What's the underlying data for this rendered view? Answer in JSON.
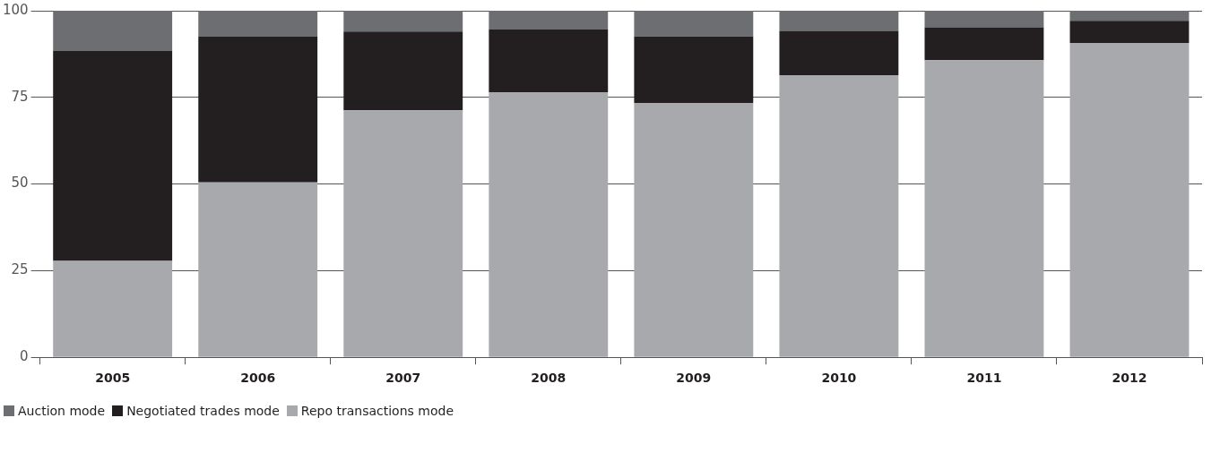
{
  "chart_data": {
    "type": "bar",
    "stacked": true,
    "categories": [
      "2005",
      "2006",
      "2007",
      "2008",
      "2009",
      "2010",
      "2011",
      "2012"
    ],
    "series": [
      {
        "name": "Repo transactions mode",
        "color": "#a7a9ac",
        "values": [
          27.8,
          50.5,
          71.3,
          76.5,
          73.4,
          81.4,
          85.7,
          90.7
        ]
      },
      {
        "name": "Negotiated trades mode",
        "color": "#231f20",
        "values": [
          60.6,
          42.0,
          22.7,
          18.1,
          19.2,
          12.8,
          9.5,
          6.4
        ]
      },
      {
        "name": "Auction mode",
        "color": "#6d6e71",
        "values": [
          11.6,
          7.5,
          6.0,
          5.4,
          7.4,
          5.8,
          4.8,
          2.9
        ]
      }
    ],
    "ylim": [
      0,
      100
    ],
    "yticks": [
      0,
      25,
      50,
      75,
      100
    ],
    "grid": "y",
    "legend": "bottom"
  }
}
